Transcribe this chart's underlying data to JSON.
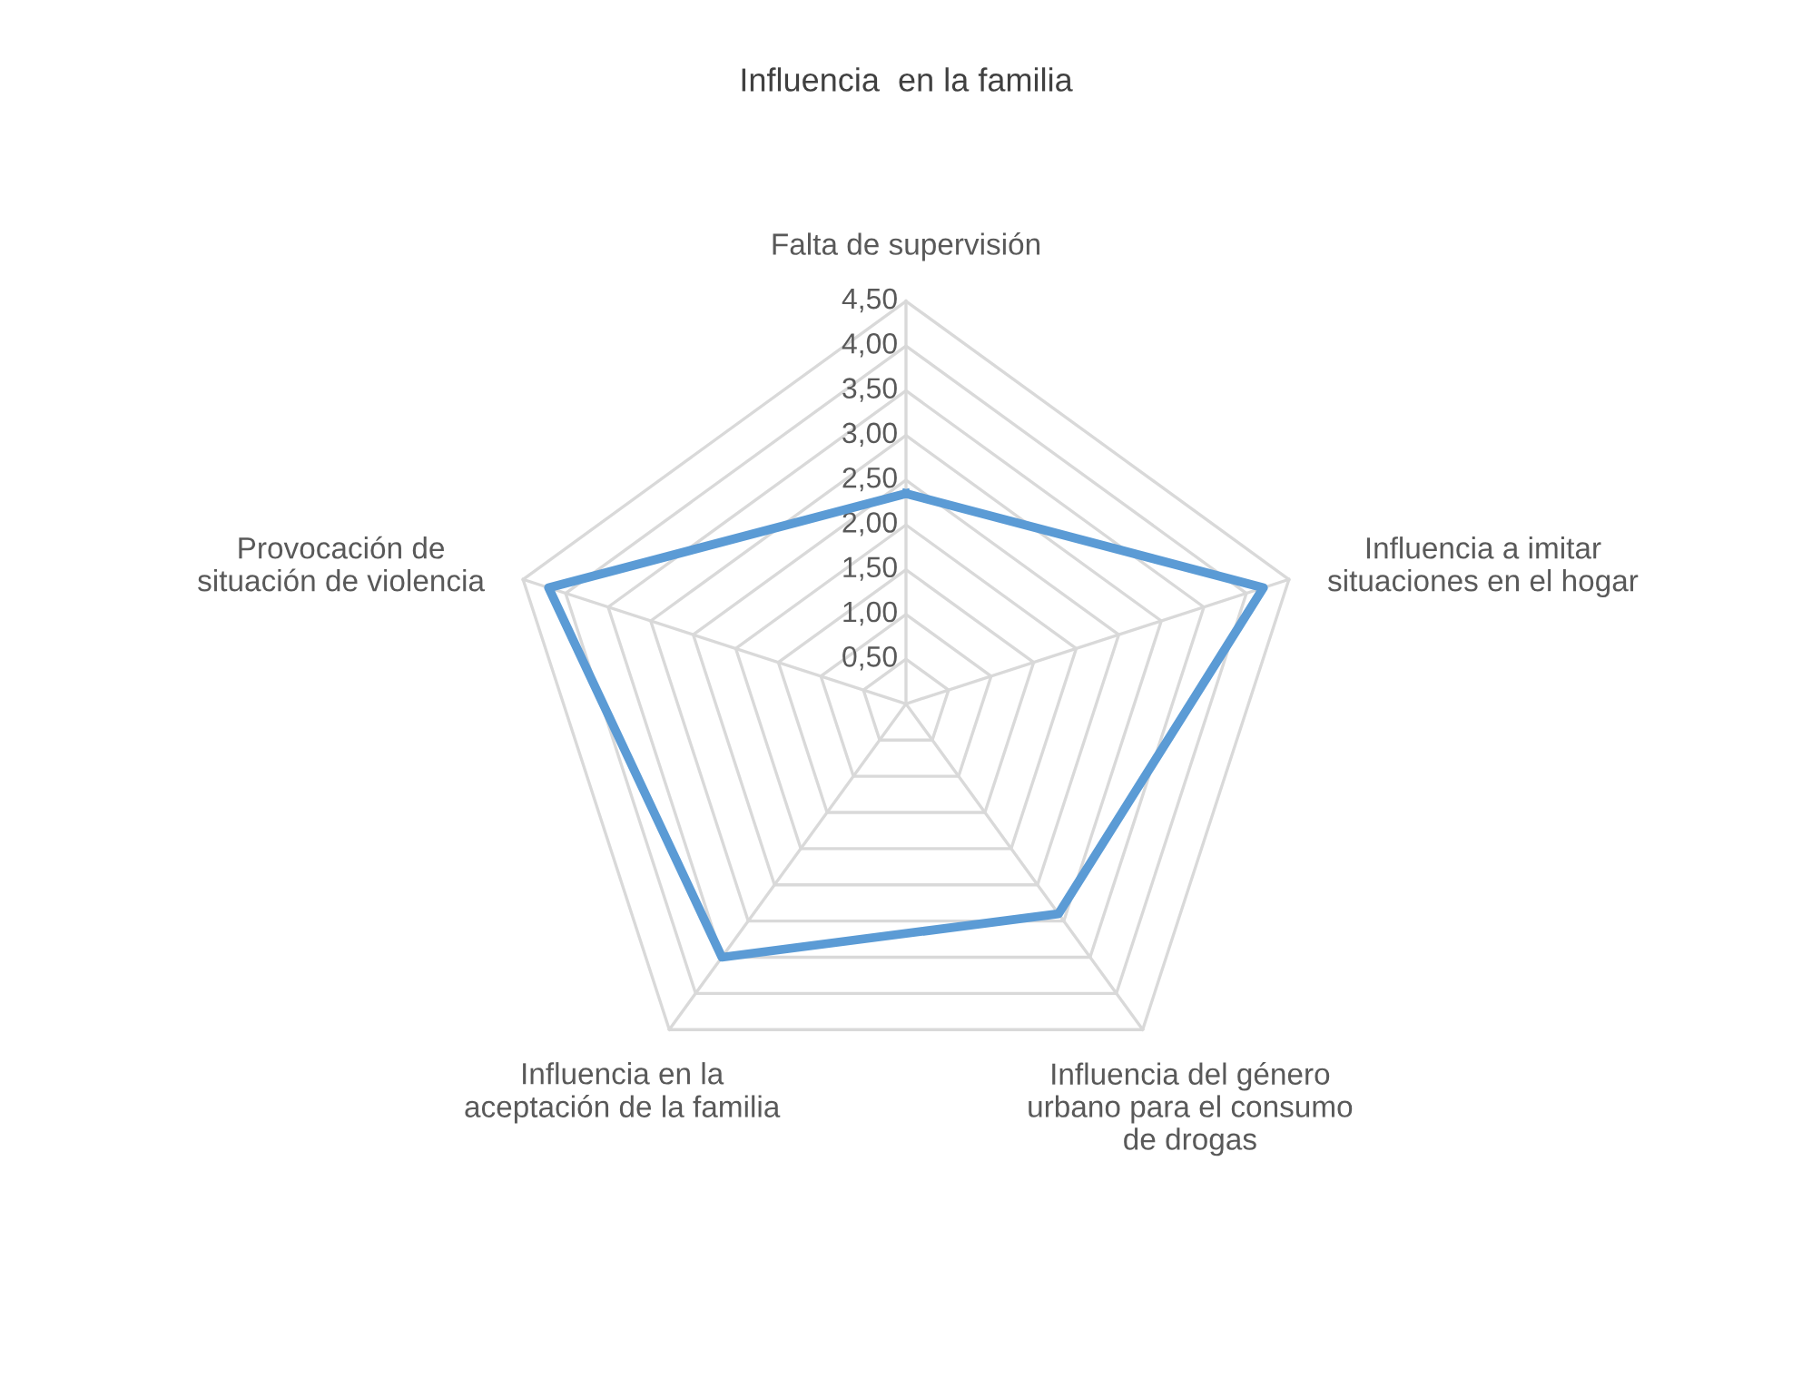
{
  "chart_data": {
    "type": "radar",
    "title": "Influencia  en la familia",
    "categories": [
      "Falta de supervisión",
      "Influencia a imitar\nsituaciones en el hogar",
      "Influencia del género\nurbano para el consumo\nde drogas",
      "Influencia en la\naceptación de la familia",
      "Provocación de\nsituación de violencia"
    ],
    "series": [
      {
        "color": "#5b9bd5",
        "values": [
          2.35,
          4.2,
          2.9,
          3.5,
          4.2
        ]
      }
    ],
    "ylim": [
      0,
      4.5
    ],
    "yticks": [
      {
        "value": 0.5,
        "label": "0,50"
      },
      {
        "value": 1.0,
        "label": "1,00"
      },
      {
        "value": 1.5,
        "label": "1,50"
      },
      {
        "value": 2.0,
        "label": "2,00"
      },
      {
        "value": 2.5,
        "label": "2,50"
      },
      {
        "value": 3.0,
        "label": "3,00"
      },
      {
        "value": 3.5,
        "label": "3,50"
      },
      {
        "value": 4.0,
        "label": "4,00"
      },
      {
        "value": 4.5,
        "label": "4,50"
      }
    ],
    "grid": true,
    "marker": "none",
    "line_style": "solid"
  }
}
